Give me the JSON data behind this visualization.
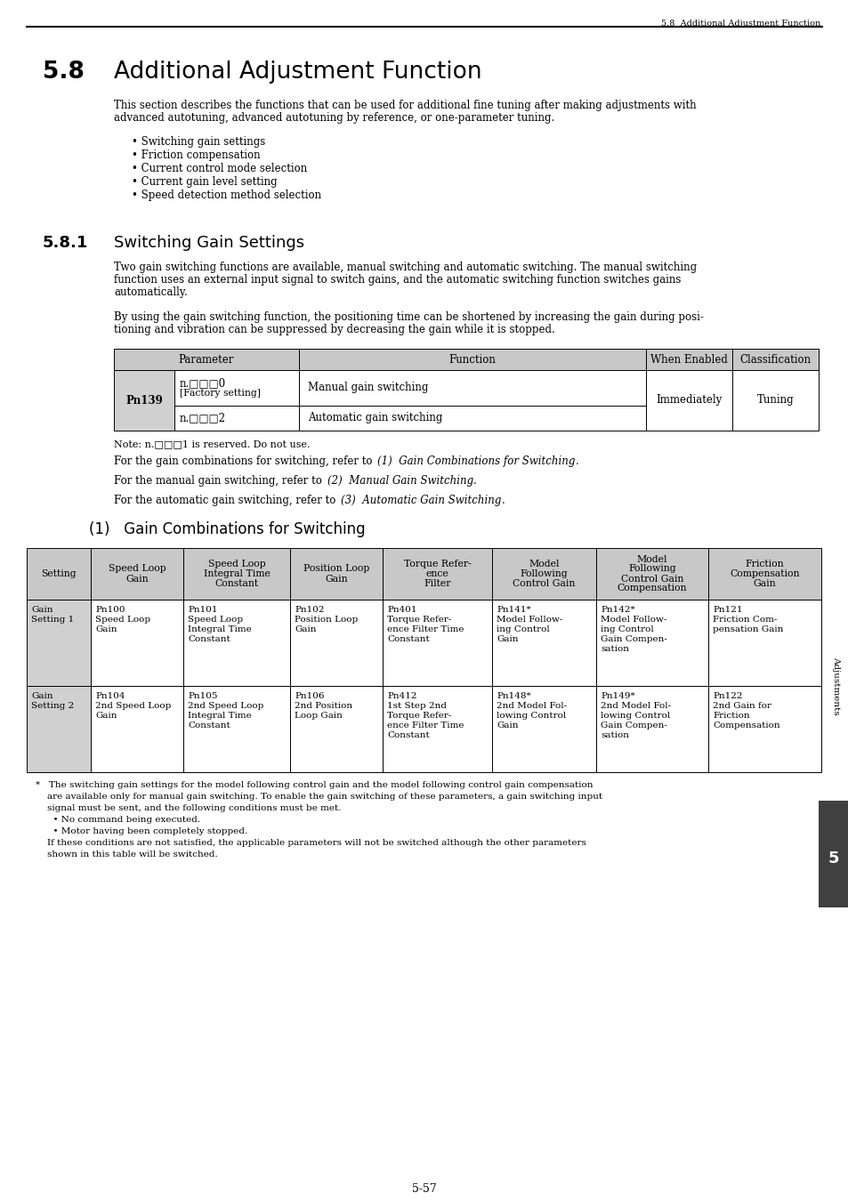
{
  "page_header": "5.8  Additional Adjustment Function",
  "section_number": "5.8",
  "section_title": "Additional Adjustment Function",
  "section_intro_1": "This section describes the functions that can be used for additional fine tuning after making adjustments with",
  "section_intro_2": "advanced autotuning, advanced autotuning by reference, or one-parameter tuning.",
  "bullet_points": [
    "• Switching gain settings",
    "• Friction compensation",
    "• Current control mode selection",
    "• Current gain level setting",
    "• Speed detection method selection"
  ],
  "subsection_number": "5.8.1",
  "subsection_title": "Switching Gain Settings",
  "subsection_para1_1": "Two gain switching functions are available, manual switching and automatic switching. The manual switching",
  "subsection_para1_2": "function uses an external input signal to switch gains, and the automatic switching function switches gains",
  "subsection_para1_3": "automatically.",
  "subsection_para2_1": "By using the gain switching function, the positioning time can be shortened by increasing the gain during posi-",
  "subsection_para2_2": "tioning and vibration can be suppressed by decreasing the gain while it is stopped.",
  "note_text": "Note: n.□□□1 is reserved. Do not use.",
  "ref1_normal": "For the gain combinations for switching, refer to ",
  "ref1_italic": "(1)  Gain Combinations for Switching",
  "ref1_end": ".",
  "ref2_normal": "For the manual gain switching, refer to ",
  "ref2_italic": "(2)  Manual Gain Switching",
  "ref2_end": ".",
  "ref3_normal": "For the automatic gain switching, refer to ",
  "ref3_italic": "(3)  Automatic Gain Switching",
  "ref3_end": ".",
  "subheading2": "(1)   Gain Combinations for Switching",
  "table2_headers": [
    "Setting",
    "Speed Loop\nGain",
    "Speed Loop\nIntegral Time\nConstant",
    "Position Loop\nGain",
    "Torque Refer-\nence\nFilter",
    "Model\nFollowing\nControl Gain",
    "Model\nFollowing\nControl Gain\nCompensation",
    "Friction\nCompensation\nGain"
  ],
  "table2_row1": [
    "Gain\nSetting 1",
    "Pn100\nSpeed Loop\nGain",
    "Pn101\nSpeed Loop\nIntegral Time\nConstant",
    "Pn102\nPosition Loop\nGain",
    "Pn401\nTorque Refer-\nence Filter Time\nConstant",
    "Pn141*\nModel Follow-\ning Control\nGain",
    "Pn142*\nModel Follow-\ning Control\nGain Compen-\nsation",
    "Pn121\nFriction Com-\npensation Gain"
  ],
  "table2_row2": [
    "Gain\nSetting 2",
    "Pn104\n2nd Speed Loop\nGain",
    "Pn105\n2nd Speed Loop\nIntegral Time\nConstant",
    "Pn106\n2nd Position\nLoop Gain",
    "Pn412\n1st Step 2nd\nTorque Refer-\nence Filter Time\nConstant",
    "Pn148*\n2nd Model Fol-\nlowing Control\nGain",
    "Pn149*\n2nd Model Fol-\nlowing Control\nGain Compen-\nsation",
    "Pn122\n2nd Gain for\nFriction\nCompensation"
  ],
  "footnote_lines": [
    "*   The switching gain settings for the model following control gain and the model following control gain compensation",
    "    are available only for manual gain switching. To enable the gain switching of these parameters, a gain switching input",
    "    signal must be sent, and the following conditions must be met.",
    "      • No command being executed.",
    "      • Motor having been completely stopped.",
    "    If these conditions are not satisfied, the applicable parameters will not be switched although the other parameters",
    "    shown in this table will be switched."
  ],
  "page_number": "5-57",
  "side_label": "Adjustments"
}
